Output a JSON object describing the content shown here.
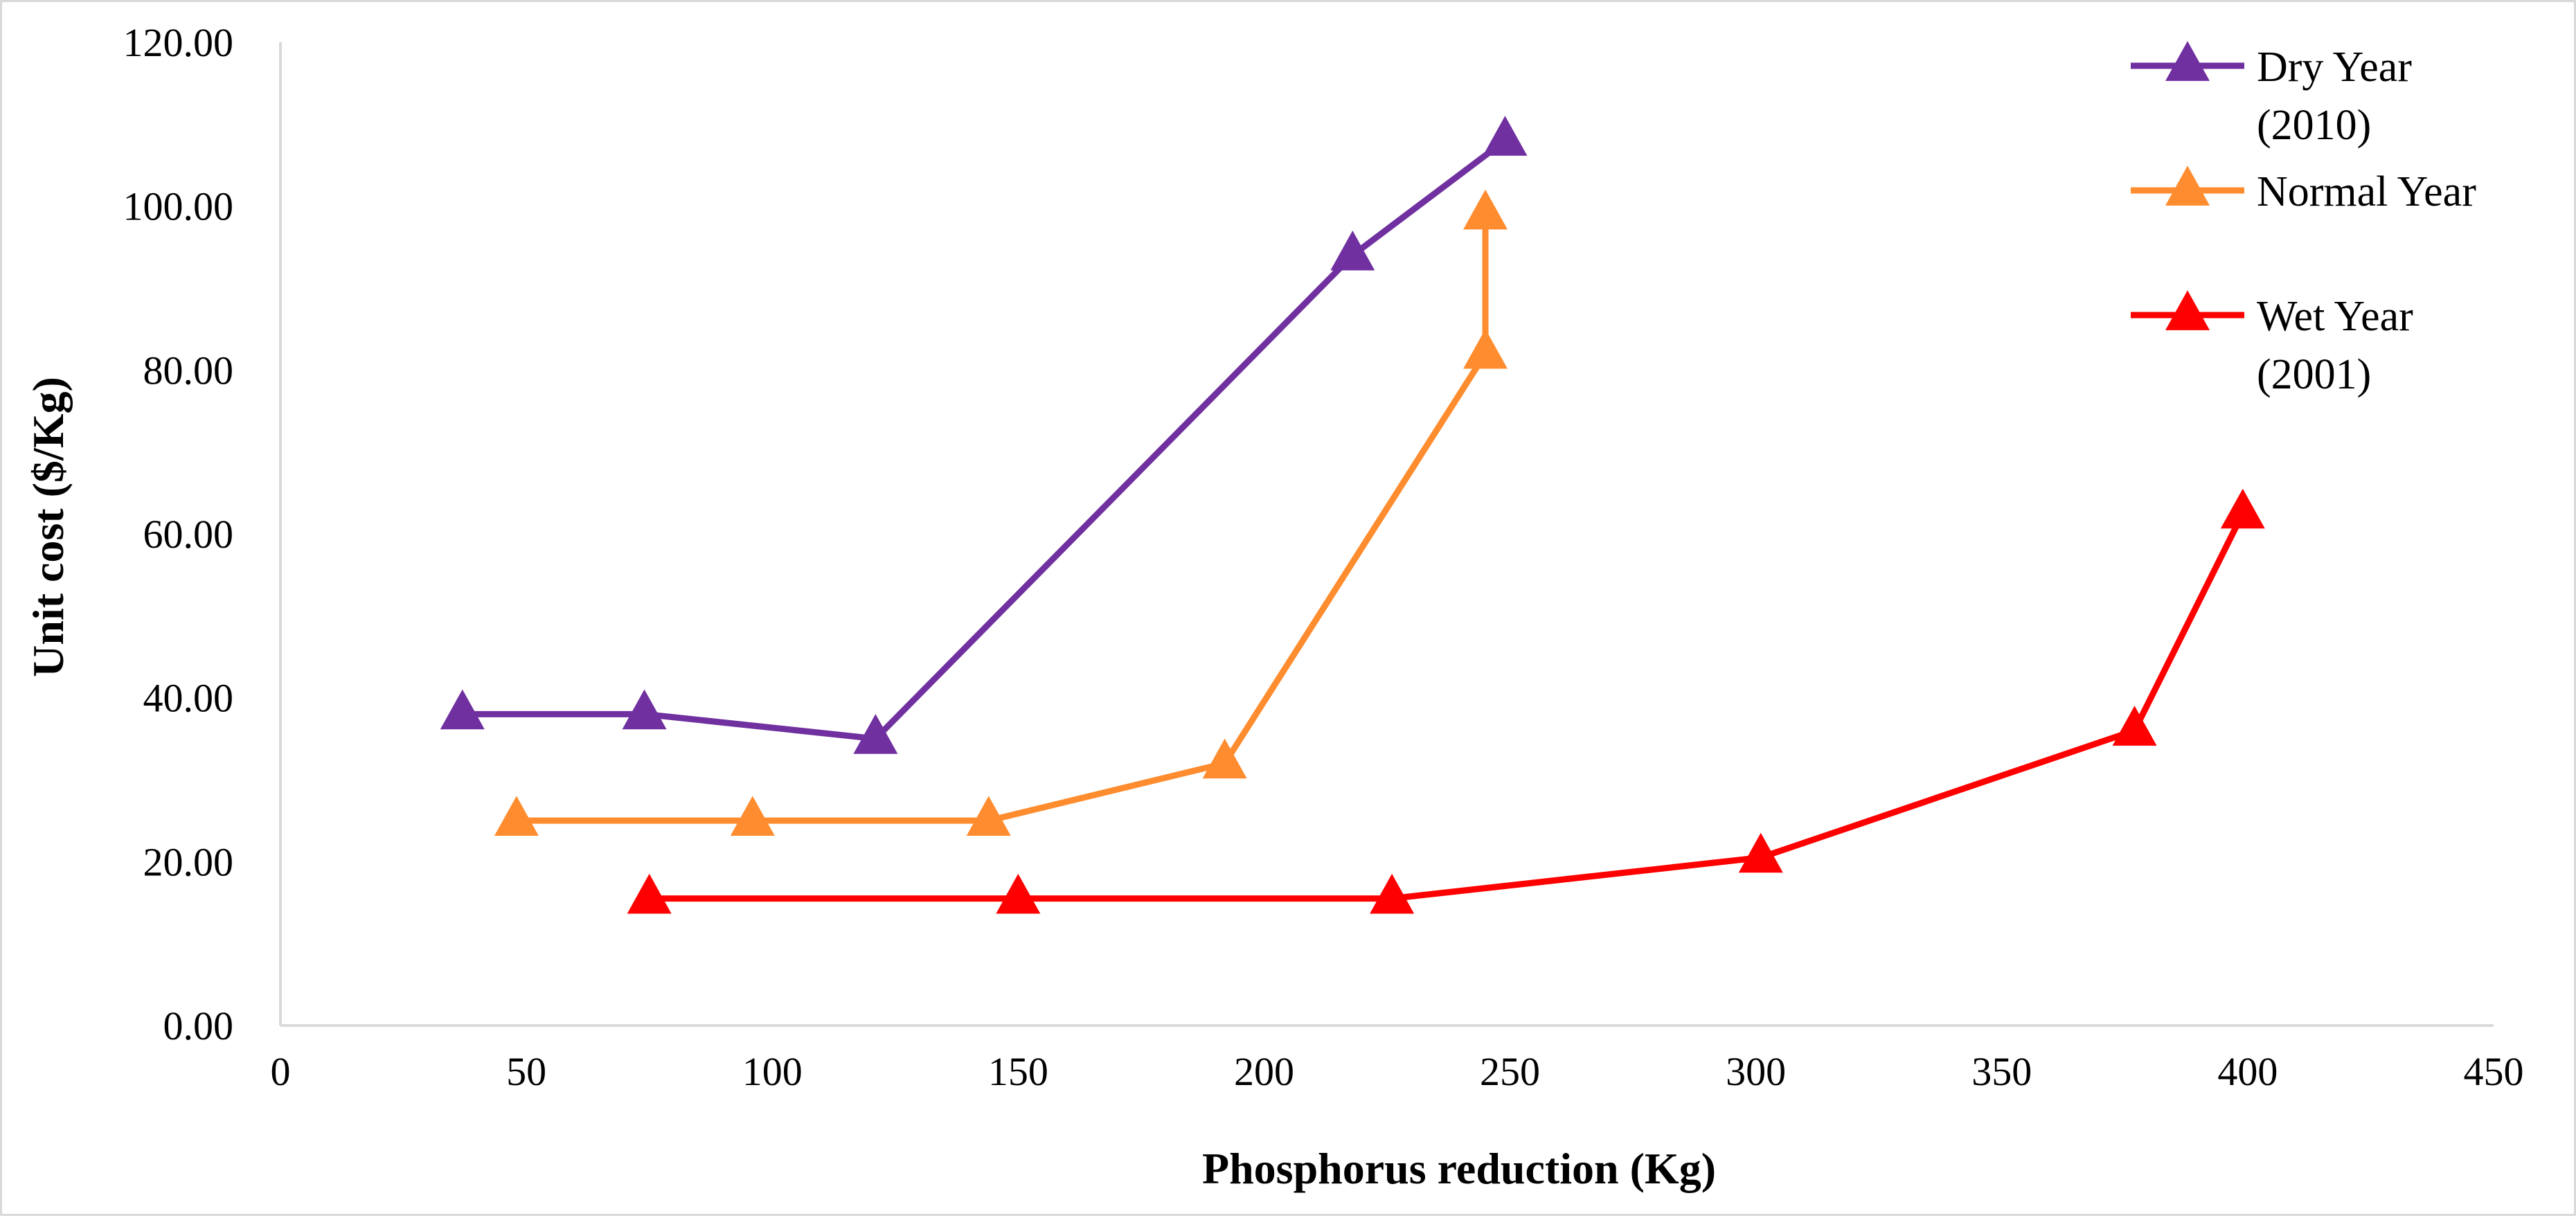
{
  "chart_data": {
    "type": "line",
    "title": "",
    "xlabel": "Phosphorus reduction (Kg)",
    "ylabel": "Unit cost ($/Kg)",
    "xlim": [
      0,
      450
    ],
    "ylim": [
      0,
      120
    ],
    "x_ticks": [
      "0",
      "50",
      "100",
      "150",
      "200",
      "250",
      "300",
      "350",
      "400",
      "450"
    ],
    "y_ticks": [
      "0.00",
      "20.00",
      "40.00",
      "60.00",
      "80.00",
      "100.00",
      "120.00"
    ],
    "grid": false,
    "legend_position": "top-right",
    "marker": "triangle",
    "series": [
      {
        "name": "Dry Year (2010)",
        "legend_lines": [
          "Dry Year",
          "(2010)"
        ],
        "color": "#7030a0",
        "points": [
          [
            37,
            38
          ],
          [
            74,
            38
          ],
          [
            121,
            35
          ],
          [
            218,
            94
          ],
          [
            249,
            108
          ]
        ]
      },
      {
        "name": "Normal Year",
        "legend_lines": [
          "Normal Year"
        ],
        "color": "#ff8c2e",
        "points": [
          [
            48,
            25
          ],
          [
            96,
            25
          ],
          [
            144,
            25
          ],
          [
            192,
            32
          ],
          [
            245,
            82
          ],
          [
            245,
            99
          ]
        ]
      },
      {
        "name": "Wet Year (2001)",
        "legend_lines": [
          "Wet Year",
          "(2001)"
        ],
        "color": "#ff0000",
        "points": [
          [
            75,
            15.5
          ],
          [
            150,
            15.5
          ],
          [
            226,
            15.5
          ],
          [
            301,
            20.5
          ],
          [
            377,
            36
          ],
          [
            399,
            62.5
          ]
        ]
      }
    ]
  }
}
